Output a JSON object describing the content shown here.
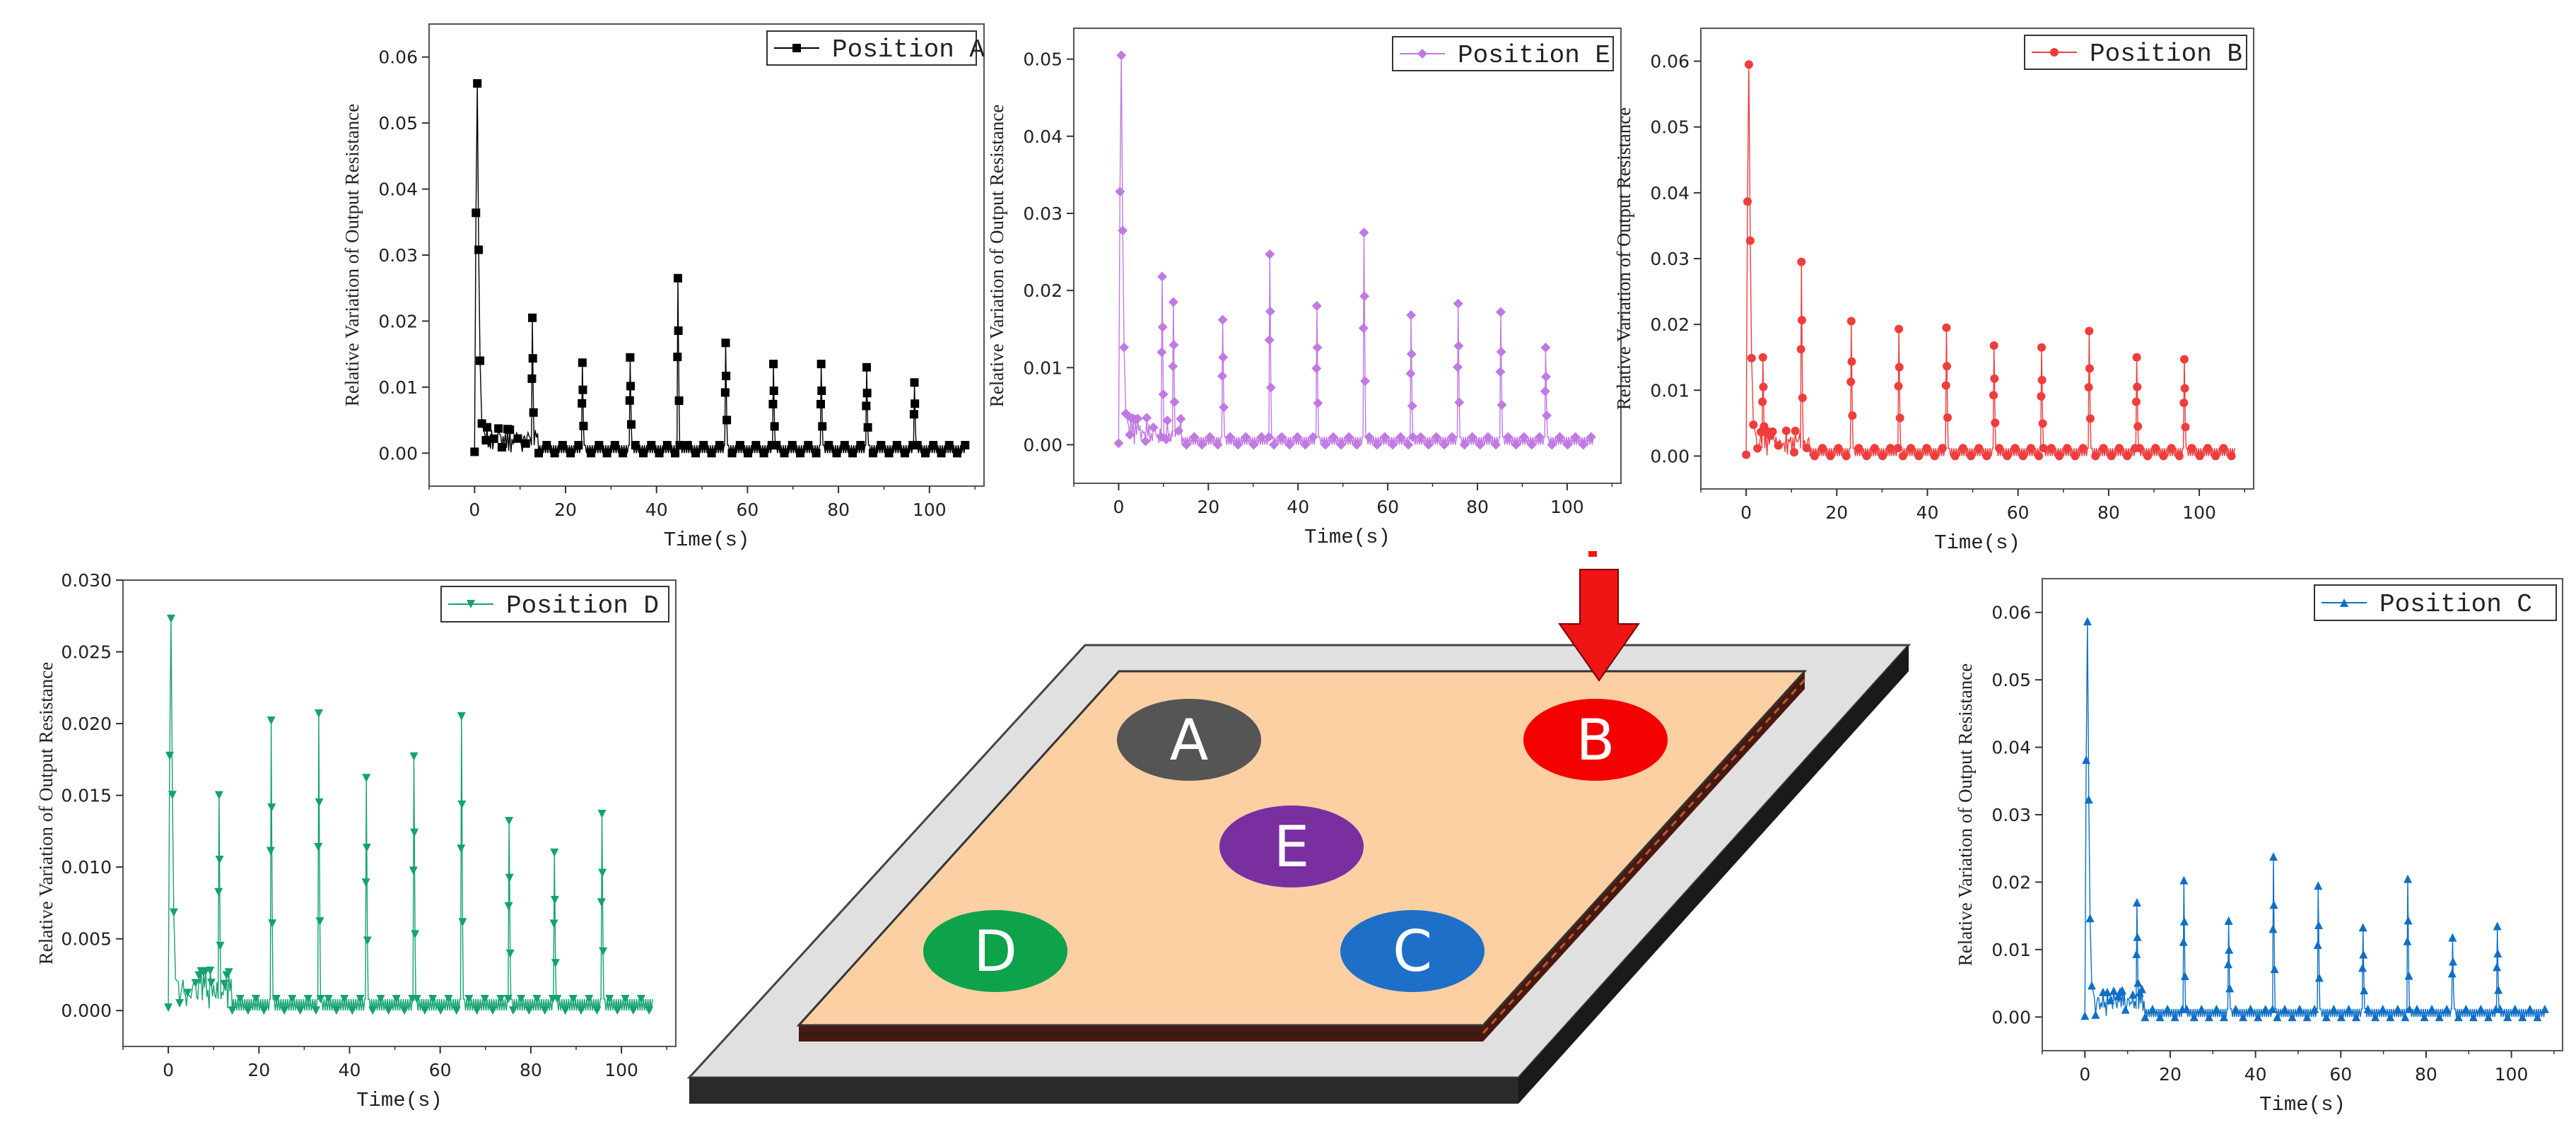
{
  "chart_data": [
    {
      "id": "A",
      "type": "line",
      "legend": "Position A",
      "color": "#000000",
      "marker": "square",
      "xlabel": "Time(s)",
      "ylabel": "Relative Variation of Output Resistance",
      "xlim": [
        -10,
        112
      ],
      "ylim": [
        -0.005,
        0.065
      ],
      "xticks": [
        0,
        20,
        40,
        60,
        80,
        100
      ],
      "xtick_labels": [
        "0",
        "20",
        "40",
        "60",
        "80",
        "100"
      ],
      "yticks": [
        0,
        0.01,
        0.02,
        0.03,
        0.04,
        0.05,
        0.06
      ],
      "ytick_labels": [
        "0.00",
        "0.01",
        "0.02",
        "0.03",
        "0.04",
        "0.05",
        "0.06"
      ],
      "xmax": 108,
      "baseline": 0.0012,
      "initial_peak": 0.056,
      "spikes": [
        [
          12.5,
          0.0205
        ],
        [
          23.5,
          0.0137
        ],
        [
          34,
          0.0145
        ],
        [
          44.5,
          0.0265
        ],
        [
          55,
          0.0167
        ],
        [
          65.5,
          0.0135
        ],
        [
          76,
          0.0135
        ],
        [
          86,
          0.013
        ],
        [
          96.5,
          0.0107
        ]
      ]
    },
    {
      "id": "E",
      "type": "line",
      "legend": "Position E",
      "color": "#c07ae2",
      "marker": "diamond",
      "xlabel": "Time(s)",
      "ylabel": "Relative Variation of Output Resistance",
      "xlim": [
        -10,
        112
      ],
      "ylim": [
        -0.005,
        0.054
      ],
      "xticks": [
        0,
        20,
        40,
        60,
        80,
        100
      ],
      "xtick_labels": [
        "0",
        "20",
        "40",
        "60",
        "80",
        "100"
      ],
      "yticks": [
        0,
        0.01,
        0.02,
        0.03,
        0.04,
        0.05
      ],
      "ytick_labels": [
        "0.00",
        "0.01",
        "0.02",
        "0.03",
        "0.04",
        "0.05"
      ],
      "xmax": 106,
      "baseline": 0.001,
      "initial_peak": 0.0505,
      "spikes": [
        [
          9.5,
          0.0218
        ],
        [
          12,
          0.0185
        ],
        [
          23,
          0.0162
        ],
        [
          33.5,
          0.0247
        ],
        [
          44,
          0.018
        ],
        [
          54.5,
          0.0275
        ],
        [
          65,
          0.0168
        ],
        [
          75.5,
          0.0183
        ],
        [
          85,
          0.0172
        ],
        [
          95,
          0.0126
        ]
      ]
    },
    {
      "id": "B",
      "type": "line",
      "legend": "Position B",
      "color": "#ef3d3d",
      "marker": "circle",
      "xlabel": "Time(s)",
      "ylabel": "Relative Variation of Output Resistance",
      "xlim": [
        -10,
        112
      ],
      "ylim": [
        -0.005,
        0.065
      ],
      "xticks": [
        0,
        20,
        40,
        60,
        80,
        100
      ],
      "xtick_labels": [
        "0",
        "20",
        "40",
        "60",
        "80",
        "100"
      ],
      "yticks": [
        0,
        0.01,
        0.02,
        0.03,
        0.04,
        0.05,
        0.06
      ],
      "ytick_labels": [
        "0.00",
        "0.01",
        "0.02",
        "0.03",
        "0.04",
        "0.05",
        "0.06"
      ],
      "xmax": 108,
      "baseline": 0.0012,
      "initial_peak": 0.0595,
      "spikes": [
        [
          3.5,
          0.015
        ],
        [
          12,
          0.0295
        ],
        [
          23,
          0.0205
        ],
        [
          33.5,
          0.0193
        ],
        [
          44,
          0.0195
        ],
        [
          54.5,
          0.0168
        ],
        [
          65,
          0.0165
        ],
        [
          75.5,
          0.019
        ],
        [
          86,
          0.015
        ],
        [
          96.5,
          0.0147
        ]
      ]
    },
    {
      "id": "D",
      "type": "line",
      "legend": "Position D",
      "color": "#14a36e",
      "marker": "triangle-down",
      "xlabel": "Time(s)",
      "ylabel": "Relative Variation of Output Resistance",
      "xlim": [
        -10,
        112
      ],
      "ylim": [
        -0.0025,
        0.03
      ],
      "xticks": [
        0,
        20,
        40,
        60,
        80,
        100
      ],
      "xtick_labels": [
        "0",
        "20",
        "40",
        "60",
        "80",
        "100"
      ],
      "yticks": [
        0,
        0.005,
        0.01,
        0.015,
        0.02,
        0.025,
        0.03
      ],
      "ytick_labels": [
        "0.000",
        "0.005",
        "0.010",
        "0.015",
        "0.020",
        "0.025",
        "0.030"
      ],
      "xmax": 107,
      "baseline": 0.0008,
      "initial_peak": 0.0273,
      "spikes": [
        [
          11,
          0.015
        ],
        [
          22.5,
          0.0202
        ],
        [
          33,
          0.0207
        ],
        [
          43.5,
          0.0162
        ],
        [
          54,
          0.0177
        ],
        [
          64.5,
          0.0205
        ],
        [
          75,
          0.0132
        ],
        [
          85,
          0.011
        ],
        [
          95.5,
          0.0137
        ]
      ]
    },
    {
      "id": "C",
      "type": "line",
      "legend": "Position C",
      "color": "#0f6fc6",
      "marker": "triangle-up",
      "xlabel": "Time(s)",
      "ylabel": "Relative Variation of Output Resistance",
      "xlim": [
        -10,
        112
      ],
      "ylim": [
        -0.005,
        0.065
      ],
      "xticks": [
        0,
        20,
        40,
        60,
        80,
        100
      ],
      "xtick_labels": [
        "0",
        "20",
        "40",
        "60",
        "80",
        "100"
      ],
      "yticks": [
        0,
        0.01,
        0.02,
        0.03,
        0.04,
        0.05,
        0.06
      ],
      "ytick_labels": [
        "0.00",
        "0.01",
        "0.02",
        "0.03",
        "0.04",
        "0.05",
        "0.06"
      ],
      "xmax": 108,
      "baseline": 0.0012,
      "initial_peak": 0.0587,
      "spikes": [
        [
          12,
          0.017
        ],
        [
          23,
          0.0203
        ],
        [
          33.5,
          0.0143
        ],
        [
          44,
          0.0238
        ],
        [
          54.5,
          0.0195
        ],
        [
          65,
          0.0133
        ],
        [
          75.5,
          0.0205
        ],
        [
          86,
          0.0118
        ],
        [
          96.5,
          0.0135
        ]
      ]
    }
  ],
  "diagram": {
    "spots": [
      {
        "label": "A",
        "color": "#555555"
      },
      {
        "label": "B",
        "color": "#f40000"
      },
      {
        "label": "E",
        "color": "#7a2fa0"
      },
      {
        "label": "D",
        "color": "#0ea24a"
      },
      {
        "label": "C",
        "color": "#1e6fc7"
      }
    ],
    "colors": {
      "plate": "#fcd0a3",
      "frame": "#e0e0e0",
      "frame_edge": "#444444",
      "arrow": "#f01515"
    }
  }
}
